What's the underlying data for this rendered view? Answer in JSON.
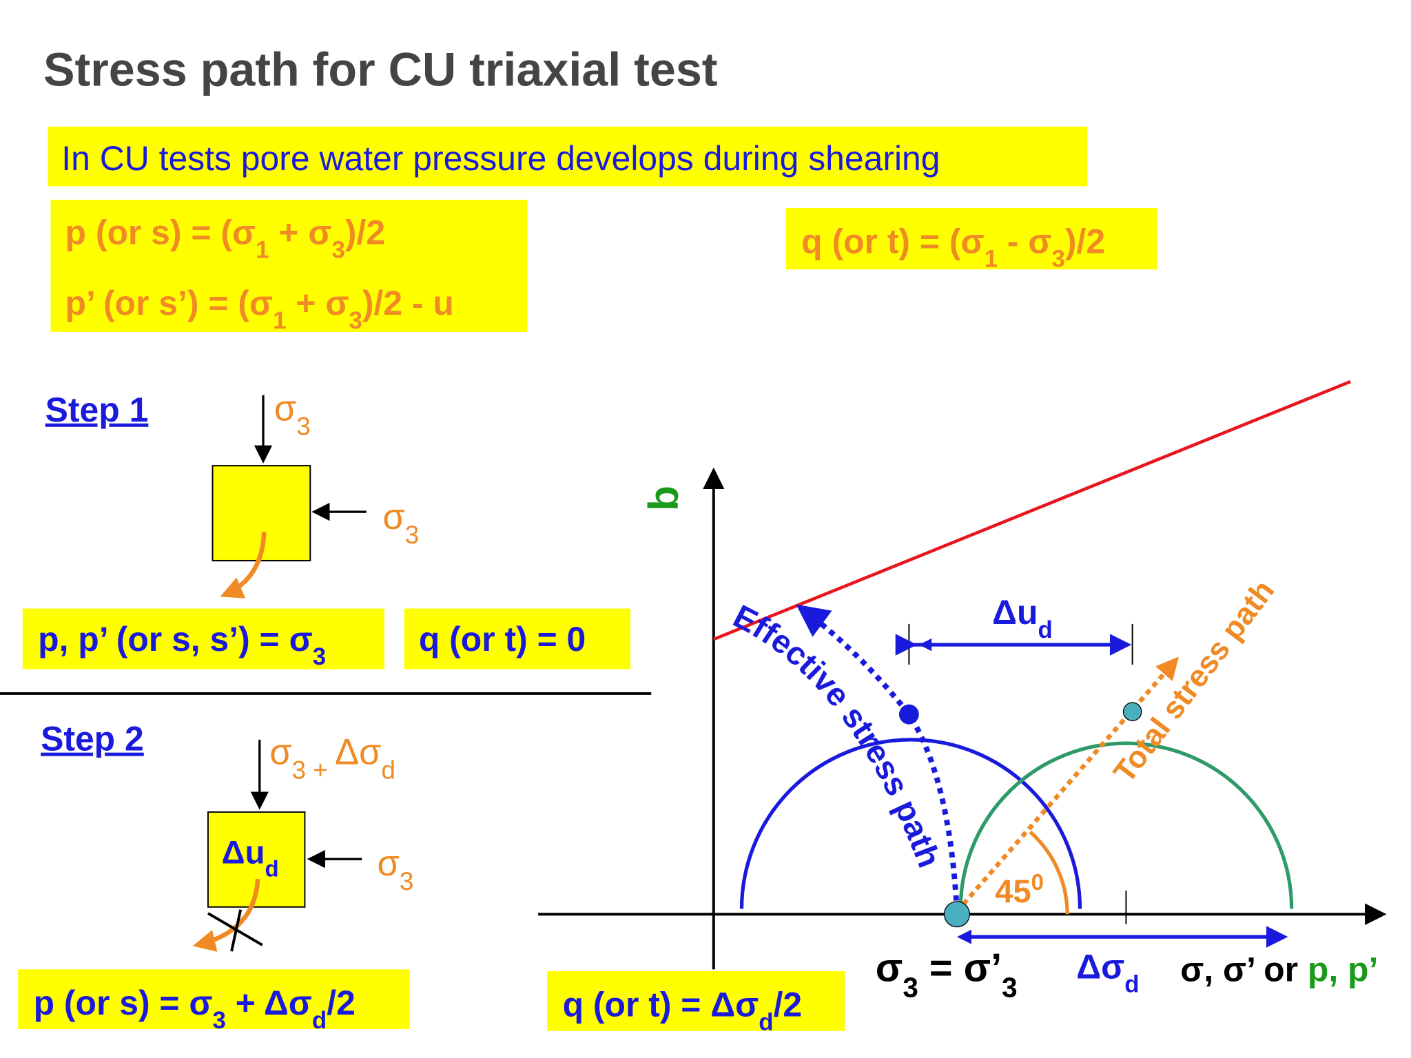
{
  "title": "Stress path for CU triaxial test",
  "banner": "In CU tests pore water pressure develops during shearing",
  "formulas": {
    "p": [
      "p (or s) = (σ",
      "1",
      " + σ",
      "3",
      ")/2"
    ],
    "p_effective": [
      "p’ (or s’) = (σ",
      "1",
      " + σ",
      "3",
      ")/2 - u"
    ],
    "q": [
      "q (or t) = (σ",
      "1",
      " - σ",
      "3",
      ")/2"
    ]
  },
  "step1": {
    "label": "Step 1",
    "top_load": [
      "σ",
      "3"
    ],
    "side_load": [
      "σ",
      "3"
    ],
    "p_result": [
      "p, p’ (or s, s’) = σ",
      "3"
    ],
    "q_result": "q (or t) = 0"
  },
  "step2": {
    "label": "Step 2",
    "top_load": [
      "σ",
      "3 + ",
      "Δσ",
      "d"
    ],
    "box_label": [
      "Δu",
      "d"
    ],
    "side_load": [
      "σ",
      "3"
    ],
    "p_result": [
      "p (or s) = σ",
      "3",
      " + Δσ",
      "d",
      "/2"
    ],
    "q_result": [
      "q (or t) = Δσ",
      "d",
      "/2"
    ]
  },
  "diagram": {
    "y_axis_label": "q",
    "pore_pressure": [
      "Δu",
      "d"
    ],
    "effective_path": "Effective stress path",
    "total_path": "Total stress path",
    "angle": [
      "45",
      "0"
    ],
    "confining": [
      "σ",
      "3",
      " = σ’",
      "3"
    ],
    "deviator": [
      "Δσ",
      "d"
    ],
    "x_axis_label": [
      "σ, σ’ or ",
      "p, p’"
    ]
  }
}
